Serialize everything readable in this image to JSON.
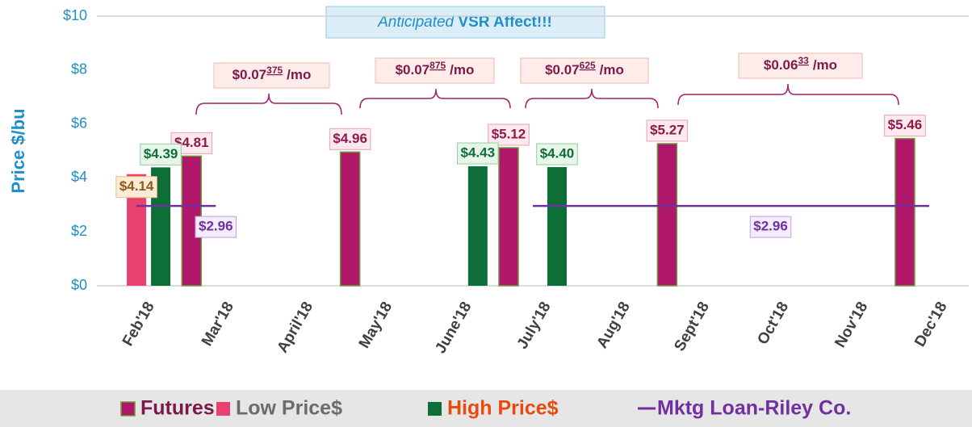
{
  "chart_data": {
    "type": "bar",
    "y_label": "Price $/bu",
    "categories": [
      "Feb'18",
      "Mar'18",
      "April'18",
      "May'18",
      "June'18",
      "July'18",
      "Aug'18",
      "Sept'18",
      "Oct'18",
      "Nov'18",
      "Dec'18"
    ],
    "series": [
      {
        "name": "Futures",
        "type": "bar",
        "color": "#b0176b",
        "legend_color": "#7b1a4a",
        "values": [
          null,
          4.81,
          null,
          4.96,
          null,
          5.12,
          null,
          5.27,
          null,
          null,
          5.46
        ],
        "value_labels": [
          null,
          "$4.81",
          null,
          "$4.96",
          null,
          "$5.12",
          null,
          "$5.27",
          null,
          null,
          "$5.46"
        ]
      },
      {
        "name": "Low Price$",
        "type": "bar",
        "color": "#e8416f",
        "legend_color": "#6b6b6b",
        "values": [
          4.14,
          null,
          null,
          null,
          null,
          null,
          null,
          null,
          null,
          null,
          null
        ],
        "value_labels": [
          "$4.14",
          null,
          null,
          null,
          null,
          null,
          null,
          null,
          null,
          null,
          null
        ]
      },
      {
        "name": "High Price$",
        "type": "bar",
        "color": "#0e6e37",
        "legend_color": "#e84a0f",
        "values": [
          4.39,
          null,
          null,
          null,
          4.43,
          4.4,
          null,
          null,
          null,
          null,
          null
        ],
        "value_labels": [
          "$4.39",
          null,
          null,
          null,
          "$4.43",
          "$4.40",
          null,
          null,
          null,
          null,
          null
        ]
      },
      {
        "name": "Mktg Loan-Riley Co.",
        "type": "line",
        "color": "#7030a0",
        "legend_color": "#7030a0",
        "values": [
          2.96,
          2.96,
          null,
          null,
          null,
          2.96,
          2.96,
          2.96,
          2.96,
          2.96,
          2.96
        ],
        "value_labels": [
          null,
          "$2.96",
          null,
          null,
          null,
          null,
          null,
          null,
          "$2.96",
          null,
          null
        ]
      }
    ],
    "ylim": [
      0,
      10
    ],
    "yticks": [
      {
        "value": 0,
        "label": "$0"
      },
      {
        "value": 2,
        "label": "$2"
      },
      {
        "value": 4,
        "label": "$4"
      },
      {
        "value": 6,
        "label": "$6"
      },
      {
        "value": 8,
        "label": "$8"
      },
      {
        "value": 10,
        "label": "$10"
      }
    ],
    "grid": false,
    "legend": "bottom",
    "annotations": [
      {
        "text": "Anticipated",
        "strong": "VSR Affect!!!"
      },
      {
        "text": "$0.07",
        "sup": "375",
        "unit": "/mo"
      },
      {
        "text": "$0.07",
        "sup": "875",
        "unit": "/mo"
      },
      {
        "text": "$0.07",
        "sup": "625",
        "unit": "/mo"
      },
      {
        "text": "$0.06",
        "sup": "33",
        "unit": "/mo"
      }
    ]
  }
}
